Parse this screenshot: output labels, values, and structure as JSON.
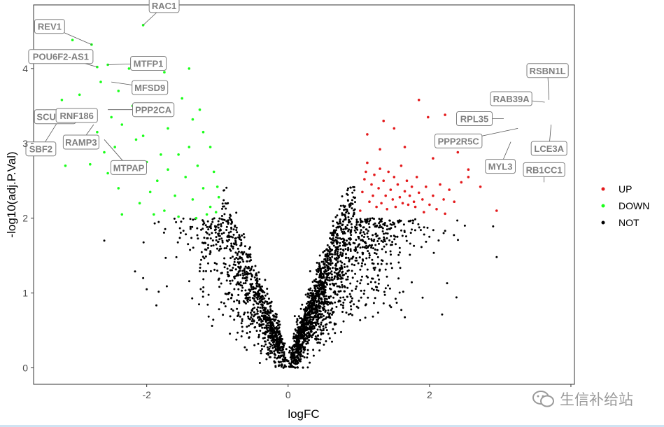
{
  "chart_data": {
    "type": "scatter",
    "title": "",
    "xlabel": "logFC",
    "ylabel": "-log10(adj.P.Val)",
    "xlim": [
      -3.6,
      4.05
    ],
    "ylim": [
      -0.22,
      4.85
    ],
    "x_ticks": [
      -2,
      0,
      2,
      4
    ],
    "x_tick_labels": [
      "-2",
      "0",
      "2",
      ""
    ],
    "y_ticks": [
      0,
      1,
      2,
      3,
      4
    ],
    "y_tick_labels": [
      "0",
      "1",
      "2",
      "3",
      "4"
    ],
    "grid": false,
    "legend_position": "right",
    "legend": [
      {
        "name": "UP",
        "color": "#e41a1c"
      },
      {
        "name": "DOWN",
        "color": "#1aff1a"
      },
      {
        "name": "NOT",
        "color": "#000000"
      }
    ],
    "series": [
      {
        "name": "UP",
        "color": "#e41a1c",
        "points": [
          [
            1.02,
            2.1
          ],
          [
            1.05,
            2.35
          ],
          [
            1.08,
            2.52
          ],
          [
            1.1,
            2.62
          ],
          [
            1.12,
            2.74
          ],
          [
            1.15,
            2.22
          ],
          [
            1.18,
            2.45
          ],
          [
            1.2,
            2.3
          ],
          [
            1.22,
            2.58
          ],
          [
            1.25,
            2.15
          ],
          [
            1.28,
            2.4
          ],
          [
            1.3,
            2.66
          ],
          [
            1.32,
            2.2
          ],
          [
            1.35,
            2.5
          ],
          [
            1.38,
            2.3
          ],
          [
            1.4,
            2.12
          ],
          [
            1.42,
            2.62
          ],
          [
            1.45,
            2.38
          ],
          [
            1.48,
            2.25
          ],
          [
            1.5,
            2.55
          ],
          [
            1.52,
            2.15
          ],
          [
            1.55,
            2.45
          ],
          [
            1.58,
            2.28
          ],
          [
            1.6,
            2.7
          ],
          [
            1.62,
            2.2
          ],
          [
            1.65,
            2.36
          ],
          [
            1.68,
            2.5
          ],
          [
            1.7,
            2.18
          ],
          [
            1.72,
            2.3
          ],
          [
            1.75,
            2.42
          ],
          [
            1.78,
            2.22
          ],
          [
            1.8,
            2.15
          ],
          [
            1.82,
            2.55
          ],
          [
            1.85,
            2.34
          ],
          [
            1.9,
            2.25
          ],
          [
            1.95,
            2.42
          ],
          [
            2.0,
            2.18
          ],
          [
            2.05,
            2.3
          ],
          [
            2.1,
            2.12
          ],
          [
            2.15,
            2.45
          ],
          [
            2.2,
            2.25
          ],
          [
            2.28,
            2.38
          ],
          [
            2.35,
            2.22
          ],
          [
            2.45,
            2.48
          ],
          [
            2.55,
            2.65
          ],
          [
            1.12,
            3.12
          ],
          [
            1.35,
            3.3
          ],
          [
            1.5,
            3.2
          ],
          [
            1.85,
            3.58
          ],
          [
            1.98,
            3.35
          ],
          [
            2.22,
            3.38
          ],
          [
            2.4,
            2.88
          ],
          [
            2.55,
            2.55
          ],
          [
            2.72,
            2.42
          ],
          [
            2.95,
            2.1
          ],
          [
            1.3,
            2.92
          ],
          [
            1.65,
            2.95
          ],
          [
            2.05,
            2.8
          ],
          [
            2.22,
            2.06
          ],
          [
            1.92,
            2.08
          ]
        ]
      },
      {
        "name": "DOWN",
        "color": "#1aff1a",
        "points": [
          [
            -2.05,
            4.58
          ],
          [
            -2.78,
            4.32
          ],
          [
            -2.55,
            4.05
          ],
          [
            -2.25,
            4.0
          ],
          [
            -2.05,
            4.08
          ],
          [
            -1.75,
            3.95
          ],
          [
            -1.4,
            4.0
          ],
          [
            -2.7,
            4.02
          ],
          [
            -3.05,
            4.38
          ],
          [
            -2.95,
            3.65
          ],
          [
            -2.65,
            3.82
          ],
          [
            -2.4,
            3.7
          ],
          [
            -2.85,
            3.45
          ],
          [
            -2.7,
            3.15
          ],
          [
            -2.5,
            3.35
          ],
          [
            -3.2,
            3.58
          ],
          [
            -3.25,
            3.3
          ],
          [
            -2.6,
            2.88
          ],
          [
            -2.8,
            2.72
          ],
          [
            -3.15,
            2.7
          ],
          [
            -2.55,
            2.6
          ],
          [
            -2.4,
            2.4
          ],
          [
            -2.35,
            2.05
          ],
          [
            -2.15,
            3.05
          ],
          [
            -2.35,
            3.25
          ],
          [
            -2.2,
            3.5
          ],
          [
            -1.95,
            3.4
          ],
          [
            -1.65,
            3.48
          ],
          [
            -1.5,
            3.6
          ],
          [
            -1.35,
            3.32
          ],
          [
            -1.25,
            3.45
          ],
          [
            -1.2,
            3.15
          ],
          [
            -1.1,
            2.95
          ],
          [
            -1.05,
            2.62
          ],
          [
            -1.0,
            2.42
          ],
          [
            -0.98,
            2.28
          ],
          [
            -2.1,
            2.2
          ],
          [
            -1.9,
            2.05
          ],
          [
            -1.75,
            2.1
          ],
          [
            -1.55,
            2.02
          ],
          [
            -1.3,
            2.0
          ],
          [
            -1.15,
            2.05
          ],
          [
            -2.0,
            2.75
          ],
          [
            -1.8,
            2.85
          ],
          [
            -2.45,
            2.95
          ],
          [
            -2.05,
            3.1
          ],
          [
            -1.7,
            3.2
          ],
          [
            -1.85,
            2.5
          ],
          [
            -1.6,
            2.3
          ],
          [
            -1.45,
            2.55
          ],
          [
            -1.28,
            2.7
          ],
          [
            -1.7,
            2.65
          ],
          [
            -1.55,
            2.85
          ],
          [
            -1.4,
            2.95
          ],
          [
            -2.25,
            2.65
          ],
          [
            -1.95,
            2.35
          ],
          [
            -1.35,
            2.25
          ],
          [
            -1.2,
            2.4
          ],
          [
            -1.1,
            2.15
          ],
          [
            -1.02,
            2.08
          ]
        ]
      }
    ],
    "labeled_genes": [
      {
        "gene": "REV1",
        "x": -2.78,
        "y": 4.32
      },
      {
        "gene": "RAC1",
        "x": -2.05,
        "y": 4.58
      },
      {
        "gene": "POU6F2-AS1",
        "x": -2.7,
        "y": 4.02
      },
      {
        "gene": "MTFP1",
        "x": -2.55,
        "y": 4.05
      },
      {
        "gene": "SCUBE3",
        "x": -2.85,
        "y": 3.45
      },
      {
        "gene": "MFSD9",
        "x": -2.5,
        "y": 3.82
      },
      {
        "gene": "PPP2CA",
        "x": -2.55,
        "y": 3.45
      },
      {
        "gene": "RNF186",
        "x": -2.95,
        "y": 3.42
      },
      {
        "gene": "RAMP3",
        "x": -2.75,
        "y": 3.25
      },
      {
        "gene": "SBF2",
        "x": -3.25,
        "y": 3.3
      },
      {
        "gene": "MTPAP",
        "x": -2.6,
        "y": 3.05
      },
      {
        "gene": "RSBN1L",
        "x": 3.69,
        "y": 3.58
      },
      {
        "gene": "RAB39A",
        "x": 3.63,
        "y": 3.55
      },
      {
        "gene": "RPL35",
        "x": 3.05,
        "y": 3.33
      },
      {
        "gene": "PPP2R5C",
        "x": 3.25,
        "y": 3.2
      },
      {
        "gene": "MYL3",
        "x": 3.15,
        "y": 3.02
      },
      {
        "gene": "LCE3A",
        "x": 3.72,
        "y": 3.25
      },
      {
        "gene": "RB1CC1",
        "x": 3.62,
        "y": 2.48
      }
    ]
  },
  "watermark": {
    "text": "生信补给站",
    "icon": "wechat-icon"
  }
}
